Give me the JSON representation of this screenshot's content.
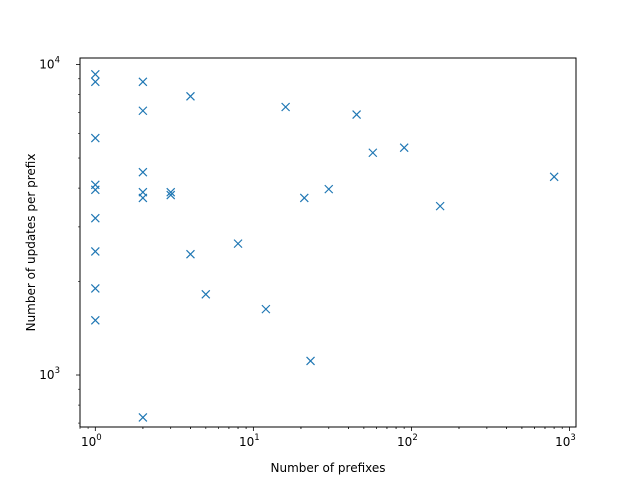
{
  "chart_data": {
    "type": "scatter",
    "xlabel": "Number of prefixes",
    "ylabel": "Number of updates per prefix",
    "x_scale": "log",
    "y_scale": "log",
    "xlim": [
      0.8,
      1100
    ],
    "ylim": [
      680,
      10500
    ],
    "grid": false,
    "marker": "x",
    "series_color": "#1f77b4",
    "x_ticks": [
      {
        "value": 1,
        "base": "10",
        "exp": "0"
      },
      {
        "value": 10,
        "base": "10",
        "exp": "1"
      },
      {
        "value": 100,
        "base": "10",
        "exp": "2"
      },
      {
        "value": 1000,
        "base": "10",
        "exp": "3"
      }
    ],
    "y_ticks": [
      {
        "value": 1000,
        "base": "10",
        "exp": "3"
      },
      {
        "value": 10000,
        "base": "10",
        "exp": "4"
      }
    ],
    "points": [
      {
        "x": 1,
        "y": 9300
      },
      {
        "x": 1,
        "y": 8800
      },
      {
        "x": 1,
        "y": 5800
      },
      {
        "x": 1,
        "y": 4100
      },
      {
        "x": 1,
        "y": 3950
      },
      {
        "x": 1,
        "y": 3200
      },
      {
        "x": 1,
        "y": 2500
      },
      {
        "x": 1,
        "y": 1900
      },
      {
        "x": 1,
        "y": 1500
      },
      {
        "x": 2,
        "y": 8800
      },
      {
        "x": 2,
        "y": 7100
      },
      {
        "x": 2,
        "y": 4500
      },
      {
        "x": 2,
        "y": 3880
      },
      {
        "x": 2,
        "y": 3720
      },
      {
        "x": 2,
        "y": 730
      },
      {
        "x": 3,
        "y": 3880
      },
      {
        "x": 3,
        "y": 3800
      },
      {
        "x": 4,
        "y": 7900
      },
      {
        "x": 4,
        "y": 2450
      },
      {
        "x": 5,
        "y": 1820
      },
      {
        "x": 8,
        "y": 2650
      },
      {
        "x": 12,
        "y": 1630
      },
      {
        "x": 16,
        "y": 7300
      },
      {
        "x": 21,
        "y": 3720
      },
      {
        "x": 23,
        "y": 1110
      },
      {
        "x": 30,
        "y": 3970
      },
      {
        "x": 45,
        "y": 6900
      },
      {
        "x": 57,
        "y": 5200
      },
      {
        "x": 90,
        "y": 5400
      },
      {
        "x": 152,
        "y": 3500
      },
      {
        "x": 800,
        "y": 4350
      }
    ]
  }
}
